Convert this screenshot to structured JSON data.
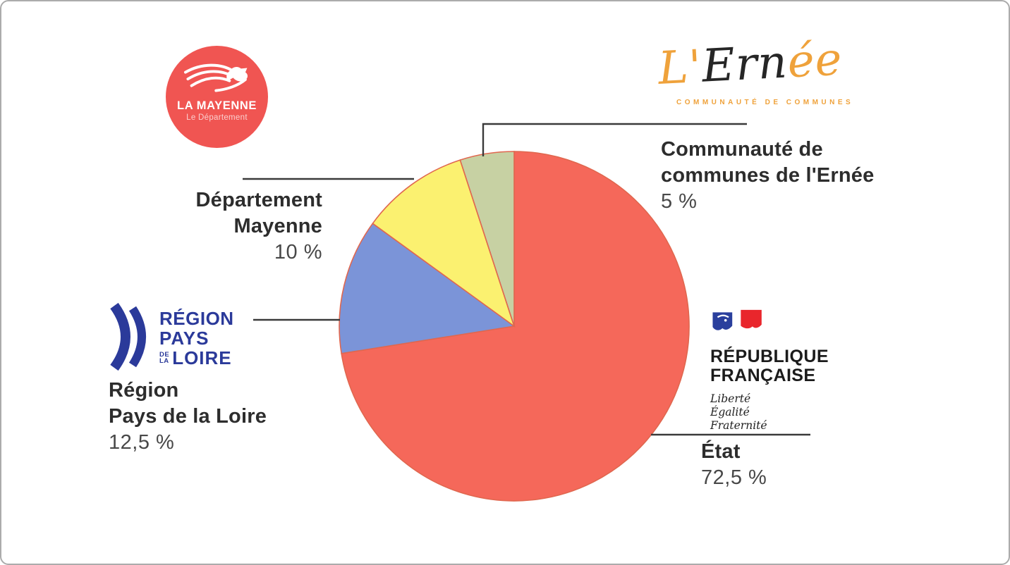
{
  "chart_data": {
    "type": "pie",
    "start_angle_deg": 0,
    "direction": "clockwise",
    "slice_stroke_color": "#e0674f",
    "legend_position": "callout-labels",
    "slices": [
      {
        "label": "État",
        "value": 72.5,
        "value_label": "72,5 %",
        "color": "#f5685a"
      },
      {
        "label": "Région Pays de la Loire",
        "value": 12.5,
        "value_label": "12,5 %",
        "color": "#7b94d8"
      },
      {
        "label": "Département Mayenne",
        "value": 10,
        "value_label": "10 %",
        "color": "#fbf170"
      },
      {
        "label": "Communauté de communes de l'Ernée",
        "value": 5,
        "value_label": "5 %",
        "color": "#c7d1a3"
      }
    ]
  },
  "callouts": {
    "ernee": {
      "line1": "Communauté de",
      "line2": "communes de l'Ernée",
      "pct": "5 %"
    },
    "mayenne": {
      "line1": "Département",
      "line2": "Mayenne",
      "pct": "10 %"
    },
    "region": {
      "line1": "Région",
      "line2": "Pays de la Loire",
      "pct": "12,5 %"
    },
    "etat": {
      "line1": "État",
      "pct": "72,5 %"
    }
  },
  "logos": {
    "mayenne": {
      "name": "LA MAYENNE",
      "tagline": "Le Département",
      "bg_color": "#f05552"
    },
    "ernee": {
      "script_part1": "L'",
      "script_part2": "Ern",
      "script_part3": "ée",
      "tagline": "COMMUNAUTÉ DE COMMUNES",
      "orange": "#efa23b",
      "dark": "#262626"
    },
    "region": {
      "word1": "RÉGION",
      "word2": "PAYS",
      "small1": "DE",
      "small2": "LA",
      "word3": "LOIRE",
      "blue": "#2b3a9a"
    },
    "republique": {
      "word1": "RÉPUBLIQUE",
      "word2": "FRANÇAISE",
      "motto": [
        "Liberté",
        "Égalité",
        "Fraternité"
      ],
      "flag_blue": "#2a3f9d",
      "flag_red": "#e9262c"
    }
  }
}
